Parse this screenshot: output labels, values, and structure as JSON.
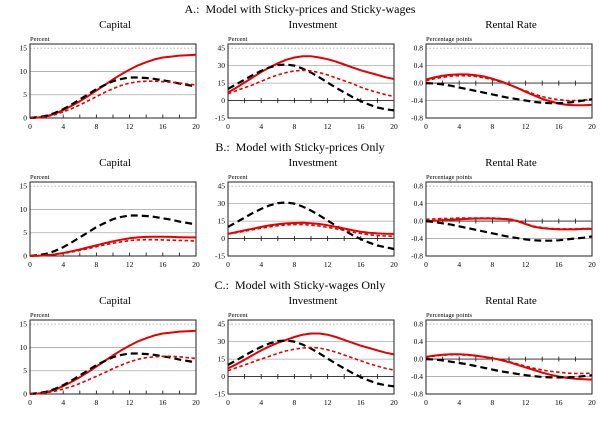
{
  "figure": {
    "background": "#ffffff"
  },
  "sections": [
    {
      "label": "A.:  Model with Sticky-prices and Sticky-wages"
    },
    {
      "label": "B.:  Model with Sticky-prices Only"
    },
    {
      "label": "C.:  Model with Sticky-wages Only"
    }
  ],
  "chart_data": {
    "type": "line",
    "x": [
      0,
      1,
      2,
      3,
      4,
      5,
      6,
      7,
      8,
      9,
      10,
      11,
      12,
      13,
      14,
      15,
      16,
      17,
      18,
      19,
      20
    ],
    "xticks": [
      0,
      4,
      8,
      12,
      16,
      20
    ],
    "xlim": [
      0,
      20
    ],
    "grid": "horizontal",
    "legend": "none",
    "colors": {
      "solid_red": "#e60000",
      "dashed_red": "#e60000",
      "dashed_black": "#000000",
      "gridline": "#aaaaaa",
      "axis": "#222222"
    },
    "panels": [
      {
        "id": "a-capital",
        "title": "Capital",
        "unit": "Percent",
        "ylim": [
          0,
          15
        ],
        "yticks": [
          0,
          5,
          10,
          15
        ],
        "ytick_labels": [
          "0",
          "5",
          "10",
          "15"
        ],
        "series": [
          {
            "name": "solid-red",
            "style": "solid_red",
            "values": [
              0,
              0.1,
              0.4,
              0.9,
              1.7,
              2.6,
              3.6,
              4.7,
              5.9,
              7.1,
              8.3,
              9.4,
              10.4,
              11.3,
              12.0,
              12.6,
              13.0,
              13.2,
              13.4,
              13.5,
              13.6
            ]
          },
          {
            "name": "dashed-black",
            "style": "dashed_black",
            "values": [
              0,
              0.2,
              0.5,
              1.1,
              1.9,
              2.9,
              4.0,
              5.1,
              6.2,
              7.1,
              7.9,
              8.4,
              8.7,
              8.7,
              8.6,
              8.4,
              8.1,
              7.8,
              7.4,
              7.1,
              6.8
            ]
          },
          {
            "name": "dashed-red",
            "style": "dashed_red",
            "values": [
              0,
              0.1,
              0.3,
              0.7,
              1.3,
              2.0,
              2.8,
              3.7,
              4.6,
              5.5,
              6.3,
              7.0,
              7.5,
              7.8,
              7.9,
              7.9,
              7.8,
              7.7,
              7.5,
              7.3,
              7.1
            ]
          }
        ]
      },
      {
        "id": "a-investment",
        "title": "Investment",
        "unit": "Percent",
        "ylim": [
          -15,
          45
        ],
        "yticks": [
          -15,
          0,
          15,
          30,
          45
        ],
        "ytick_labels": [
          "-15",
          "0",
          "15",
          "30",
          "45"
        ],
        "series": [
          {
            "name": "solid-red",
            "style": "solid_red",
            "values": [
              7,
              11,
              15.5,
              20,
              24.5,
              28.5,
              32,
              35,
              37,
              38,
              38,
              37,
              35.5,
              33.5,
              31,
              28.5,
              26,
              24,
              22,
              20,
              18.5
            ]
          },
          {
            "name": "dashed-black",
            "style": "dashed_black",
            "values": [
              10,
              14,
              18,
              22,
              25.5,
              28.5,
              30.5,
              31,
              30,
              27.5,
              24,
              20,
              15.5,
              11,
              7,
              3,
              -0.5,
              -3.5,
              -6,
              -7.5,
              -8.5
            ]
          },
          {
            "name": "dashed-red",
            "style": "dashed_red",
            "values": [
              6,
              8.5,
              11,
              13.5,
              16.5,
              19.5,
              22,
              24,
              25.5,
              26,
              25.5,
              24,
              22,
              19.5,
              17,
              14.5,
              11.5,
              9,
              7,
              5,
              3.5
            ]
          }
        ]
      },
      {
        "id": "a-rental",
        "title": "Rental Rate",
        "unit": "Percentage points",
        "ylim": [
          -0.8,
          0.8
        ],
        "yticks": [
          -0.8,
          -0.4,
          0,
          0.4,
          0.8
        ],
        "ytick_labels": [
          "-0.8",
          "-0.4",
          "0.0",
          "0.4",
          "0.8"
        ],
        "series": [
          {
            "name": "solid-red",
            "style": "solid_red",
            "values": [
              0.08,
              0.13,
              0.17,
              0.19,
              0.2,
              0.2,
              0.18,
              0.15,
              0.1,
              0.04,
              -0.03,
              -0.11,
              -0.2,
              -0.28,
              -0.36,
              -0.42,
              -0.47,
              -0.5,
              -0.51,
              -0.51,
              -0.5
            ]
          },
          {
            "name": "dashed-red",
            "style": "dashed_red",
            "values": [
              0.05,
              0.1,
              0.13,
              0.16,
              0.17,
              0.17,
              0.15,
              0.12,
              0.08,
              0.03,
              -0.04,
              -0.11,
              -0.18,
              -0.25,
              -0.31,
              -0.35,
              -0.38,
              -0.4,
              -0.4,
              -0.39,
              -0.37
            ]
          },
          {
            "name": "dashed-black",
            "style": "dashed_black",
            "values": [
              0,
              -0.01,
              -0.03,
              -0.06,
              -0.1,
              -0.14,
              -0.18,
              -0.22,
              -0.26,
              -0.3,
              -0.34,
              -0.37,
              -0.4,
              -0.43,
              -0.45,
              -0.46,
              -0.46,
              -0.45,
              -0.43,
              -0.4,
              -0.37
            ]
          }
        ]
      },
      {
        "id": "b-capital",
        "title": "Capital",
        "unit": "Percent",
        "ylim": [
          0,
          15
        ],
        "yticks": [
          0,
          5,
          10,
          15
        ],
        "ytick_labels": [
          "0",
          "5",
          "10",
          "15"
        ],
        "series": [
          {
            "name": "dashed-black",
            "style": "dashed_black",
            "values": [
              0,
              0.2,
              0.5,
              1.1,
              1.9,
              2.9,
              4.0,
              5.1,
              6.2,
              7.1,
              7.9,
              8.4,
              8.7,
              8.7,
              8.6,
              8.4,
              8.1,
              7.8,
              7.4,
              7.1,
              6.8
            ]
          },
          {
            "name": "solid-red",
            "style": "solid_red",
            "values": [
              0,
              0.05,
              0.15,
              0.35,
              0.65,
              1.0,
              1.4,
              1.85,
              2.3,
              2.75,
              3.15,
              3.5,
              3.8,
              4.0,
              4.1,
              4.15,
              4.15,
              4.1,
              4.05,
              4.0,
              4.0
            ]
          },
          {
            "name": "dashed-red",
            "style": "dashed_red",
            "values": [
              0,
              0.05,
              0.13,
              0.3,
              0.55,
              0.85,
              1.2,
              1.6,
              2.0,
              2.4,
              2.75,
              3.05,
              3.3,
              3.45,
              3.5,
              3.5,
              3.45,
              3.4,
              3.35,
              3.3,
              3.2
            ]
          }
        ]
      },
      {
        "id": "b-investment",
        "title": "Investment",
        "unit": "Percent",
        "ylim": [
          -15,
          45
        ],
        "yticks": [
          -15,
          0,
          15,
          30,
          45
        ],
        "ytick_labels": [
          "-15",
          "0",
          "15",
          "30",
          "45"
        ],
        "series": [
          {
            "name": "dashed-black",
            "style": "dashed_black",
            "values": [
              10,
              14,
              18,
              22,
              25.5,
              28.5,
              30.5,
              31,
              30,
              27.5,
              24,
              20,
              15.5,
              11,
              7,
              3,
              -0.5,
              -3.5,
              -6,
              -7.5,
              -9
            ]
          },
          {
            "name": "solid-red",
            "style": "solid_red",
            "values": [
              4,
              5.5,
              7,
              8.5,
              10,
              11.3,
              12.3,
              13,
              13.4,
              13.5,
              13.2,
              12.5,
              11.4,
              10,
              8.6,
              7.2,
              5.9,
              5,
              4.4,
              4.1,
              4
            ]
          },
          {
            "name": "dashed-red",
            "style": "dashed_red",
            "values": [
              4,
              5,
              6.3,
              7.6,
              8.9,
              10,
              11,
              11.7,
              12,
              12,
              11.6,
              10.8,
              9.7,
              8.4,
              7,
              5.6,
              4.3,
              3.3,
              2.6,
              2.2,
              2
            ]
          }
        ]
      },
      {
        "id": "b-rental",
        "title": "Rental Rate",
        "unit": "Percentage points",
        "ylim": [
          -0.8,
          0.8
        ],
        "yticks": [
          -0.8,
          -0.4,
          0,
          0.4,
          0.8
        ],
        "ytick_labels": [
          "-0.8",
          "-0.4",
          "0.0",
          "0.4",
          "0.8"
        ],
        "series": [
          {
            "name": "solid-red",
            "style": "solid_red",
            "values": [
              0,
              0.01,
              0.02,
              0.03,
              0.04,
              0.05,
              0.06,
              0.06,
              0.06,
              0.05,
              0.04,
              0,
              -0.07,
              -0.13,
              -0.16,
              -0.18,
              -0.19,
              -0.19,
              -0.19,
              -0.18,
              -0.18
            ]
          },
          {
            "name": "dashed-red",
            "style": "dashed_red",
            "values": [
              0.04,
              0.05,
              0.06,
              0.06,
              0.07,
              0.07,
              0.07,
              0.07,
              0.07,
              0.06,
              0.05,
              0.01,
              -0.06,
              -0.12,
              -0.15,
              -0.17,
              -0.18,
              -0.18,
              -0.18,
              -0.17,
              -0.17
            ]
          },
          {
            "name": "dashed-black",
            "style": "dashed_black",
            "values": [
              0,
              -0.02,
              -0.05,
              -0.08,
              -0.12,
              -0.16,
              -0.2,
              -0.24,
              -0.28,
              -0.32,
              -0.36,
              -0.39,
              -0.42,
              -0.44,
              -0.45,
              -0.45,
              -0.44,
              -0.42,
              -0.4,
              -0.38,
              -0.35
            ]
          }
        ]
      },
      {
        "id": "c-capital",
        "title": "Capital",
        "unit": "Percent",
        "ylim": [
          0,
          15
        ],
        "yticks": [
          0,
          5,
          10,
          15
        ],
        "ytick_labels": [
          "0",
          "5",
          "10",
          "15"
        ],
        "series": [
          {
            "name": "solid-red",
            "style": "solid_red",
            "values": [
              0,
              0.1,
              0.4,
              0.9,
              1.7,
              2.6,
              3.6,
              4.7,
              5.9,
              7.1,
              8.3,
              9.4,
              10.4,
              11.3,
              12.0,
              12.6,
              13.0,
              13.2,
              13.4,
              13.5,
              13.6
            ]
          },
          {
            "name": "dashed-black",
            "style": "dashed_black",
            "values": [
              0,
              0.2,
              0.5,
              1.1,
              1.9,
              2.9,
              4.0,
              5.1,
              6.2,
              7.1,
              7.9,
              8.4,
              8.7,
              8.7,
              8.6,
              8.4,
              8.1,
              7.8,
              7.4,
              7.1,
              6.8
            ]
          },
          {
            "name": "dashed-red",
            "style": "dashed_red",
            "values": [
              0,
              0.1,
              0.3,
              0.6,
              1.05,
              1.6,
              2.25,
              3.0,
              3.8,
              4.6,
              5.45,
              6.2,
              6.9,
              7.45,
              7.8,
              8.0,
              8.1,
              8.1,
              8.0,
              7.8,
              7.6
            ]
          }
        ]
      },
      {
        "id": "c-investment",
        "title": "Investment",
        "unit": "Percent",
        "ylim": [
          -15,
          45
        ],
        "yticks": [
          -15,
          0,
          15,
          30,
          45
        ],
        "ytick_labels": [
          "-15",
          "0",
          "15",
          "30",
          "45"
        ],
        "series": [
          {
            "name": "solid-red",
            "style": "solid_red",
            "values": [
              7,
              10.5,
              14.5,
              18.5,
              22.5,
              26,
              29,
              31.5,
              34,
              36,
              37,
              37,
              36,
              34,
              31.5,
              29,
              26.5,
              24.5,
              22.5,
              20.5,
              19
            ]
          },
          {
            "name": "dashed-black",
            "style": "dashed_black",
            "values": [
              10,
              14,
              18,
              22,
              25.5,
              28.5,
              30.5,
              31,
              30,
              27.5,
              24,
              20,
              15.5,
              11,
              7,
              3,
              -0.5,
              -3.5,
              -6,
              -7.5,
              -8.5
            ]
          },
          {
            "name": "dashed-red",
            "style": "dashed_red",
            "values": [
              5,
              7.5,
              10,
              12.5,
              15,
              17.5,
              20,
              22,
              23.5,
              24.5,
              25,
              24.5,
              23,
              21,
              18.5,
              16,
              13.5,
              11,
              9,
              7,
              5.5
            ]
          }
        ]
      },
      {
        "id": "c-rental",
        "title": "Rental Rate",
        "unit": "Percentage points",
        "ylim": [
          -0.8,
          0.8
        ],
        "yticks": [
          -0.8,
          -0.4,
          0,
          0.4,
          0.8
        ],
        "ytick_labels": [
          "-0.8",
          "-0.4",
          "0.0",
          "0.4",
          "0.8"
        ],
        "series": [
          {
            "name": "solid-red",
            "style": "solid_red",
            "values": [
              0.05,
              0.08,
              0.1,
              0.11,
              0.11,
              0.1,
              0.08,
              0.05,
              0.02,
              -0.02,
              -0.07,
              -0.13,
              -0.19,
              -0.25,
              -0.31,
              -0.36,
              -0.4,
              -0.43,
              -0.45,
              -0.46,
              -0.47
            ]
          },
          {
            "name": "dashed-red",
            "style": "dashed_red",
            "values": [
              0.04,
              0.07,
              0.09,
              0.1,
              0.1,
              0.09,
              0.07,
              0.05,
              0.02,
              -0.01,
              -0.06,
              -0.11,
              -0.16,
              -0.21,
              -0.25,
              -0.28,
              -0.3,
              -0.32,
              -0.33,
              -0.33,
              -0.32
            ]
          },
          {
            "name": "dashed-black",
            "style": "dashed_black",
            "values": [
              0,
              -0.01,
              -0.03,
              -0.06,
              -0.09,
              -0.12,
              -0.16,
              -0.2,
              -0.24,
              -0.28,
              -0.31,
              -0.34,
              -0.37,
              -0.39,
              -0.41,
              -0.42,
              -0.42,
              -0.42,
              -0.41,
              -0.39,
              -0.37
            ]
          }
        ]
      }
    ]
  }
}
